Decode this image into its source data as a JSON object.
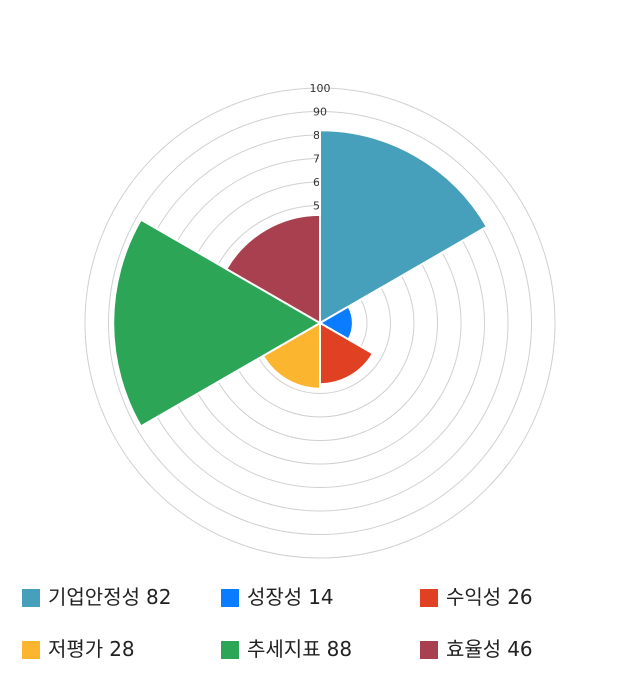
{
  "chart_data": {
    "type": "polarArea",
    "categories": [
      "기업안정성",
      "성장성",
      "수익성",
      "저평가",
      "추세지표",
      "효율성"
    ],
    "values": [
      82,
      14,
      26,
      28,
      88,
      46
    ],
    "colors": [
      "#47a0bb",
      "#0a7cff",
      "#e04122",
      "#fcb52f",
      "#2ca556",
      "#a8404f"
    ],
    "rlim": [
      0,
      100
    ],
    "rticks": [
      10,
      20,
      30,
      40,
      50,
      60,
      70,
      80,
      90,
      100
    ]
  }
}
